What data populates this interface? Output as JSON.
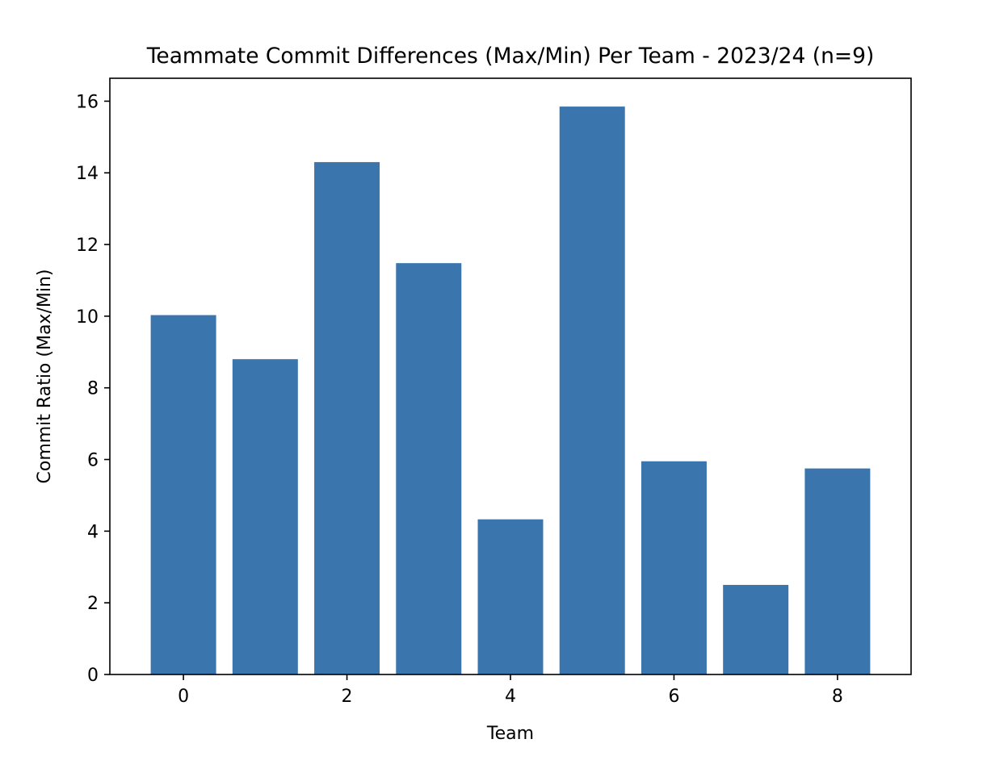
{
  "chart_data": {
    "type": "bar",
    "title": "Teammate Commit Differences (Max/Min) Per Team - 2023/24 (n=9)",
    "xlabel": "Team",
    "ylabel": "Commit Ratio (Max/Min)",
    "x": [
      0,
      1,
      2,
      3,
      4,
      5,
      6,
      7,
      8
    ],
    "values": [
      10.03,
      8.8,
      14.3,
      11.48,
      4.33,
      15.85,
      5.95,
      2.5,
      5.75
    ],
    "xlim": [
      -0.9,
      8.9
    ],
    "ylim": [
      0,
      16.64
    ],
    "xticks": [
      0,
      2,
      4,
      6,
      8
    ],
    "yticks": [
      0,
      2,
      4,
      6,
      8,
      10,
      12,
      14,
      16
    ],
    "bar_color": "#3a75ae",
    "grid": false,
    "legend": "none"
  }
}
